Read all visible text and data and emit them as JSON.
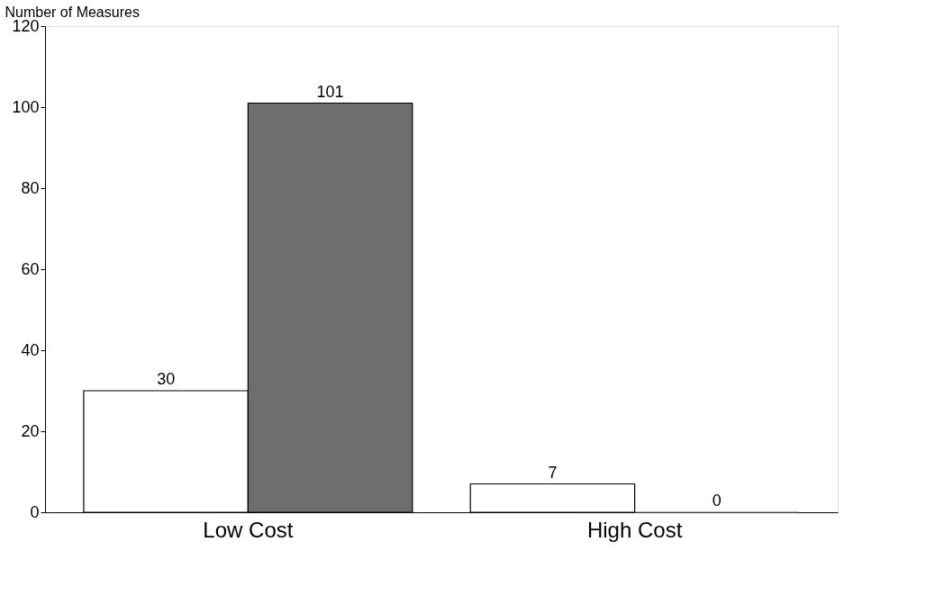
{
  "chart_data": {
    "type": "bar",
    "ylabel": "Number of Measures",
    "categories": [
      "Low Cost",
      "High Cost"
    ],
    "series": [
      {
        "color": "#ffffff",
        "values": [
          30,
          7
        ]
      },
      {
        "color": "#6e6e6e",
        "values": [
          101,
          0
        ]
      }
    ],
    "ylim": [
      0,
      120
    ],
    "yticks": [
      0,
      20,
      40,
      60,
      80,
      100,
      120
    ],
    "grid": false,
    "legend": false,
    "data_labels": true
  }
}
